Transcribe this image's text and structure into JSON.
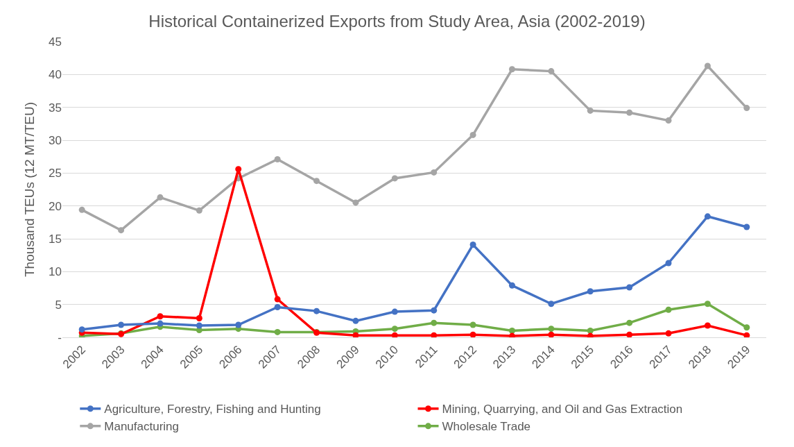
{
  "chart_data": {
    "type": "line",
    "title": "Historical Containerized Exports from Study Area, Asia (2002-2019)",
    "ylabel": "Thousand TEUs (12 MT/TEU)",
    "categories": [
      "2002",
      "2003",
      "2004",
      "2005",
      "2006",
      "2007",
      "2008",
      "2009",
      "2010",
      "2011",
      "2012",
      "2013",
      "2014",
      "2015",
      "2016",
      "2017",
      "2018",
      "2019"
    ],
    "series": [
      {
        "name": "Agriculture, Forestry, Fishing and Hunting",
        "color": "#4472c4",
        "values": [
          1.2,
          1.9,
          2.1,
          1.8,
          1.9,
          4.6,
          4.0,
          2.5,
          3.9,
          4.1,
          14.1,
          7.9,
          5.1,
          7.0,
          7.6,
          11.3,
          18.4,
          16.8
        ]
      },
      {
        "name": "Mining, Quarrying, and Oil and Gas Extraction",
        "color": "#ff0000",
        "values": [
          0.7,
          0.5,
          3.2,
          2.9,
          25.6,
          5.8,
          0.7,
          0.3,
          0.3,
          0.3,
          0.4,
          0.2,
          0.4,
          0.2,
          0.4,
          0.6,
          1.8,
          0.3
        ]
      },
      {
        "name": "Manufacturing",
        "color": "#a5a5a5",
        "values": [
          19.4,
          16.3,
          21.3,
          19.3,
          24.2,
          27.1,
          23.8,
          20.5,
          24.2,
          25.1,
          30.8,
          40.8,
          40.5,
          34.5,
          34.2,
          33.0,
          41.3,
          34.9
        ]
      },
      {
        "name": "Wholesale Trade",
        "color": "#70ad47",
        "values": [
          0.2,
          0.6,
          1.6,
          1.1,
          1.3,
          0.8,
          0.8,
          0.9,
          1.3,
          2.2,
          1.9,
          1.0,
          1.3,
          1.0,
          2.2,
          4.2,
          5.1,
          1.5
        ]
      }
    ],
    "ylim": [
      0,
      45
    ],
    "yticks": [
      {
        "value": 0,
        "label": "-"
      },
      5,
      10,
      15,
      20,
      25,
      30,
      35,
      40,
      45
    ],
    "grid": "y",
    "legend": "bottom",
    "marker": "circle",
    "line_style": "solid"
  }
}
